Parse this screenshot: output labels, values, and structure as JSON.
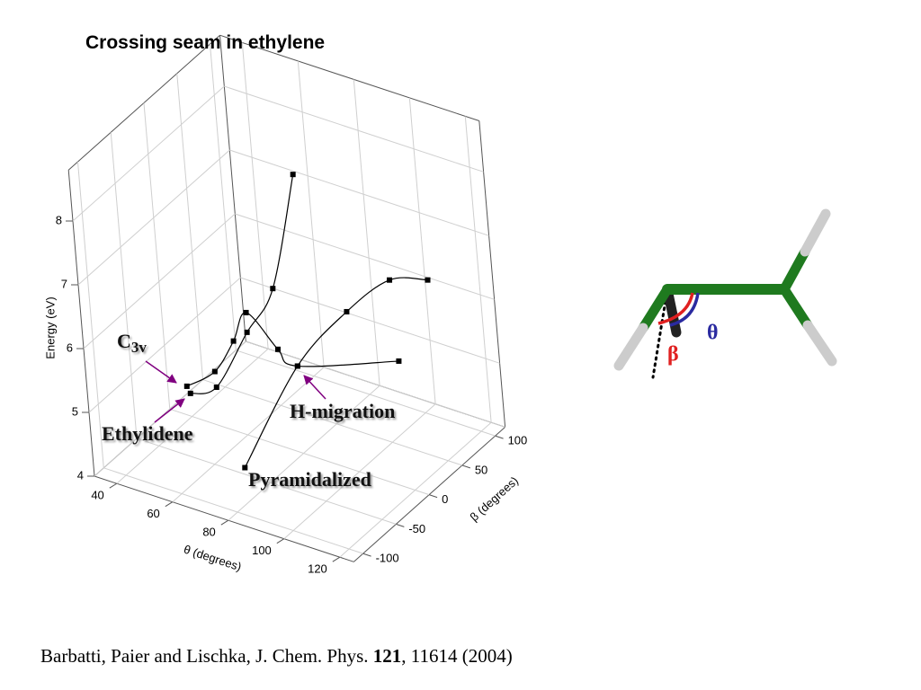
{
  "chart_data": {
    "type": "line3d",
    "title": "Crossing seam in ethylene",
    "xlabel": "θ (degrees)",
    "ylabel": "β (degrees)",
    "zlabel": "Energy (eV)",
    "xlim": [
      32,
      125
    ],
    "ylim": [
      -114,
      115
    ],
    "zlim": [
      4,
      8.8
    ],
    "xticks": [
      40,
      60,
      80,
      100,
      120
    ],
    "yticks": [
      -100,
      -50,
      0,
      50,
      100
    ],
    "zticks": [
      4,
      5,
      6,
      7,
      8
    ],
    "grid": true,
    "color": "#000000",
    "series": [
      {
        "theta": [
          87,
          81,
          94,
          110,
          122
        ],
        "beta": [
          -111,
          -2,
          24,
          27,
          35
        ],
        "energy": [
          4.9,
          5.4,
          6.2,
          6.9,
          7.0
        ]
      },
      {
        "theta": [
          102,
          81,
          79,
          76,
          71,
          65,
          60
        ],
        "beta": [
          61,
          -2,
          -20,
          -49,
          -51,
          -58,
          -80
        ],
        "energy": [
          5.2,
          5.4,
          5.8,
          6.6,
          6.1,
          5.6,
          5.5
        ]
      },
      {
        "theta": [
          59,
          62,
          76,
          84,
          90
        ],
        "beta": [
          -72,
          -46,
          -50,
          -39,
          -20
        ],
        "energy": [
          5.3,
          5.2,
          6.3,
          7.0,
          8.7
        ]
      }
    ],
    "annotations": [
      {
        "text": "C",
        "sub": "3v"
      },
      {
        "text": "Ethylidene"
      },
      {
        "text": "H-migration"
      },
      {
        "text": "Pyramidalized"
      }
    ]
  },
  "figure": {
    "theta_label": "θ",
    "beta_label": "β"
  },
  "citation": {
    "authors": "Barbatti, Paier and Lischka, J. Chem. Phys. ",
    "volume": "121",
    "pages": ", 11614 (2004)"
  }
}
